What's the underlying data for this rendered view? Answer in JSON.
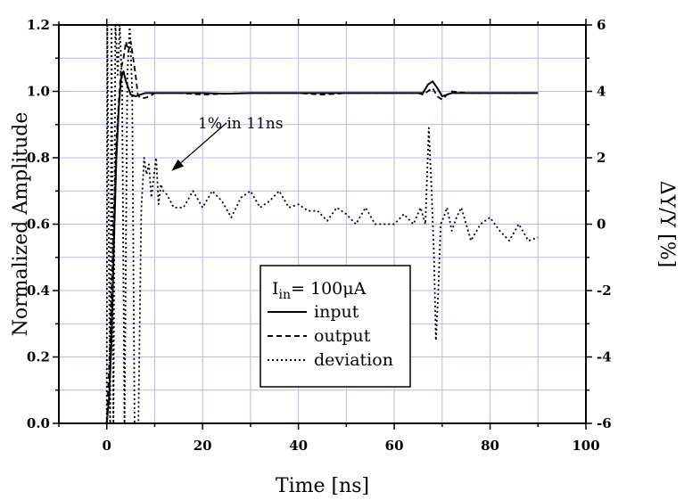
{
  "chart_data": {
    "type": "line",
    "title": "",
    "xlabel": "Time [ns]",
    "ylabel": "Normalized Amplitude",
    "y2label": "ΔY/Y [%]",
    "xlim": [
      -10,
      100
    ],
    "ylim": [
      0.0,
      1.2
    ],
    "y2lim": [
      -6,
      6
    ],
    "xticks": [
      "0",
      "20",
      "40",
      "60",
      "80",
      "100"
    ],
    "yticks": [
      "0.0",
      "0.2",
      "0.4",
      "0.6",
      "0.8",
      "1.0",
      "1.2"
    ],
    "y2ticks": [
      "-6",
      "-4",
      "-2",
      "0",
      "2",
      "4",
      "6"
    ],
    "grid": true,
    "legend": {
      "placement": "lower-center",
      "title_main": "I",
      "title_sub": "in",
      "title_rest": "= 100μA",
      "entries": [
        "input",
        "output",
        "deviation"
      ]
    },
    "annotation": {
      "text": "1% in 11ns",
      "arrow_from": [
        25,
        0.905
      ],
      "arrow_to": [
        13.5,
        0.76
      ]
    },
    "series": [
      {
        "name": "input",
        "axis": "left",
        "style": "solid",
        "x": [
          0,
          0.5,
          1,
          1.5,
          2,
          2.5,
          3,
          3.5,
          4,
          5,
          6,
          7,
          8,
          10,
          15,
          20,
          25,
          30,
          35,
          40,
          45,
          50,
          55,
          60,
          65,
          66,
          67,
          68,
          69,
          70,
          71,
          72,
          75,
          80,
          85,
          90
        ],
        "y": [
          0.0,
          0.08,
          0.25,
          0.55,
          0.8,
          0.95,
          1.04,
          1.06,
          1.03,
          0.99,
          0.985,
          0.99,
          0.995,
          0.995,
          0.995,
          0.995,
          0.993,
          0.995,
          0.995,
          0.995,
          0.995,
          0.995,
          0.995,
          0.995,
          0.995,
          0.995,
          1.02,
          1.03,
          1.01,
          0.985,
          0.99,
          0.995,
          0.995,
          0.995,
          0.995,
          0.995
        ]
      },
      {
        "name": "output",
        "axis": "left",
        "style": "dashed",
        "x": [
          0,
          0.7,
          1.5,
          2,
          2.5,
          3,
          3.5,
          4,
          4.5,
          5,
          5.5,
          6,
          6.5,
          7,
          8,
          9,
          10,
          15,
          20,
          25,
          30,
          35,
          40,
          45,
          50,
          55,
          60,
          65,
          66,
          67,
          68,
          69,
          70,
          71,
          72,
          75,
          80,
          85,
          90
        ],
        "y": [
          0.0,
          0.25,
          0.65,
          0.85,
          0.97,
          1.07,
          1.1,
          1.15,
          1.12,
          1.15,
          1.1,
          1.05,
          0.99,
          0.98,
          0.98,
          0.985,
          0.995,
          0.995,
          0.99,
          0.993,
          0.995,
          0.995,
          0.995,
          0.99,
          0.995,
          0.995,
          0.995,
          0.995,
          0.99,
          1.0,
          1.01,
          0.985,
          0.975,
          0.99,
          1.0,
          0.995,
          0.995,
          0.995,
          0.995
        ]
      },
      {
        "name": "deviation",
        "axis": "right",
        "style": "dotted",
        "x": [
          0,
          0.1,
          0.7,
          1.0,
          1.4,
          1.8,
          2.3,
          2.7,
          3.2,
          3.7,
          4.3,
          4.8,
          5.3,
          5.8,
          6.3,
          6.6,
          7.2,
          7.8,
          8.3,
          8.8,
          9.3,
          9.8,
          10.3,
          10.8,
          11.3,
          11.8,
          12.5,
          14,
          16,
          18,
          20,
          22,
          24,
          26,
          28,
          30,
          32,
          34,
          36,
          38,
          40,
          42,
          44,
          46,
          48,
          50,
          52,
          54,
          56,
          58,
          60,
          62,
          64,
          65.5,
          66.5,
          67.2,
          67.8,
          68.3,
          68.7,
          69.2,
          69.7,
          70.3,
          71,
          72,
          73,
          74,
          76,
          78,
          80,
          82,
          84,
          86,
          88,
          90
        ],
        "y": [
          -6,
          6,
          -6,
          6,
          -6,
          6,
          4.5,
          6,
          4.2,
          -6,
          4.5,
          6,
          4.0,
          -6,
          -6,
          -6,
          0.4,
          2.0,
          1.5,
          1.8,
          0.8,
          1.4,
          2.0,
          0.6,
          1.2,
          1.0,
          0.9,
          0.5,
          0.5,
          1.0,
          0.5,
          1.0,
          0.7,
          0.2,
          0.8,
          1.0,
          0.5,
          0.7,
          1.0,
          0.5,
          0.6,
          0.4,
          0.4,
          0.1,
          0.5,
          0.3,
          0.0,
          0.5,
          0.0,
          0.0,
          0.0,
          0.3,
          0.0,
          0.5,
          0.0,
          2.9,
          1.0,
          -1.0,
          -3.5,
          -2.0,
          0.0,
          0.2,
          0.5,
          -0.2,
          0.2,
          0.5,
          -0.5,
          0.0,
          0.2,
          -0.2,
          -0.5,
          0.0,
          -0.5,
          -0.4
        ]
      }
    ]
  }
}
